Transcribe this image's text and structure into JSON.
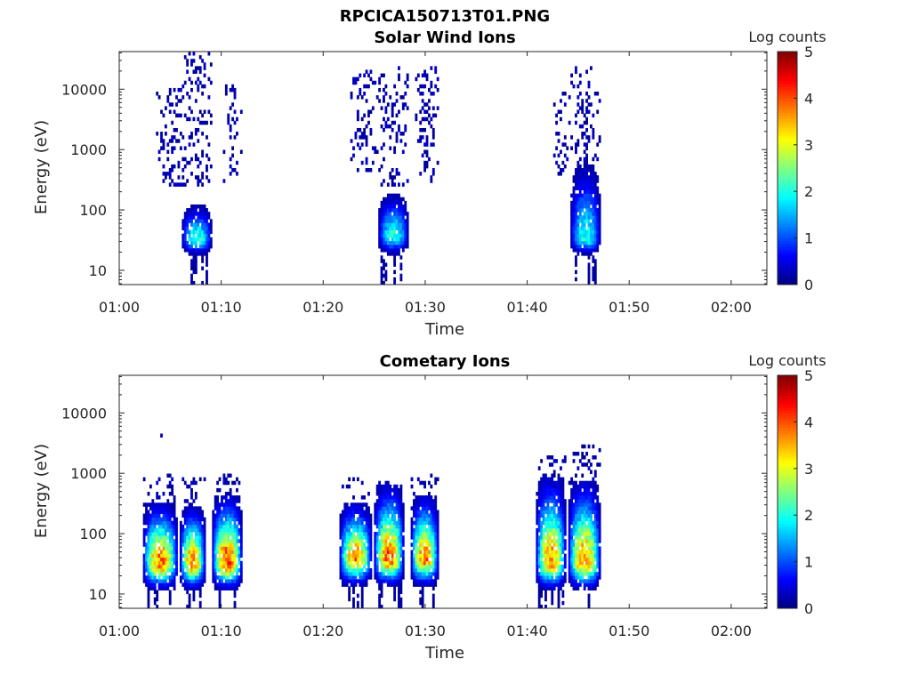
{
  "figure_title": "RPCICA150713T01.PNG",
  "chart_data": [
    {
      "type": "heatmap",
      "title": "Solar Wind Ions",
      "xlabel": "Time",
      "ylabel": "Energy (eV)",
      "x_tick_labels": [
        "01:00",
        "01:10",
        "01:20",
        "01:30",
        "01:40",
        "01:50",
        "02:00"
      ],
      "x_tick_minutes": [
        0,
        10,
        20,
        30,
        40,
        50,
        60
      ],
      "xlim_minutes": [
        0,
        63.5
      ],
      "y_tick_labels": [
        "10",
        "100",
        "1000",
        "10000"
      ],
      "y_tick_values": [
        10,
        100,
        1000,
        10000
      ],
      "ylim": [
        5.8,
        42000
      ],
      "y_scale": "log",
      "colorbar": {
        "label": "Log counts",
        "ticks": [
          0,
          1,
          2,
          3,
          4,
          5
        ],
        "range": [
          0,
          5
        ],
        "colormap": "jet"
      },
      "bursts": [
        {
          "t0": 6.2,
          "t1": 9.0,
          "core_emin": 18,
          "core_emax": 120,
          "core_peak_energy": 35,
          "core_peak_log": 2.2,
          "scatter_emin": 250,
          "scatter_emax": 38000,
          "low_energy_traces": true
        },
        {
          "t0": 3.8,
          "t1": 6.6,
          "core_emin": 0,
          "core_emax": 0,
          "core_peak_energy": 0,
          "core_peak_log": 0,
          "scatter_emin": 280,
          "scatter_emax": 9500,
          "low_energy_traces": false
        },
        {
          "t0": 10.3,
          "t1": 12.0,
          "core_emin": 0,
          "core_emax": 0,
          "core_peak_energy": 0,
          "core_peak_log": 0,
          "scatter_emin": 300,
          "scatter_emax": 12000,
          "low_energy_traces": false
        },
        {
          "t0": 25.5,
          "t1": 28.2,
          "core_emin": 18,
          "core_emax": 180,
          "core_peak_energy": 40,
          "core_peak_log": 2.1,
          "scatter_emin": 250,
          "scatter_emax": 22000,
          "low_energy_traces": true
        },
        {
          "t0": 22.8,
          "t1": 25.4,
          "core_emin": 0,
          "core_emax": 0,
          "core_peak_energy": 0,
          "core_peak_log": 0,
          "scatter_emin": 400,
          "scatter_emax": 20000,
          "low_energy_traces": false
        },
        {
          "t0": 29.0,
          "t1": 31.2,
          "core_emin": 0,
          "core_emax": 0,
          "core_peak_energy": 0,
          "core_peak_log": 0,
          "scatter_emin": 300,
          "scatter_emax": 21000,
          "low_energy_traces": false
        },
        {
          "t0": 44.3,
          "t1": 47.2,
          "core_emin": 18,
          "core_emax": 500,
          "core_peak_energy": 35,
          "core_peak_log": 2.0,
          "scatter_emin": 300,
          "scatter_emax": 24000,
          "low_energy_traces": true
        },
        {
          "t0": 42.5,
          "t1": 44.2,
          "core_emin": 0,
          "core_emax": 0,
          "core_peak_energy": 0,
          "core_peak_log": 0,
          "scatter_emin": 400,
          "scatter_emax": 9000,
          "low_energy_traces": false
        }
      ]
    },
    {
      "type": "heatmap",
      "title": "Cometary Ions",
      "xlabel": "Time",
      "ylabel": "Energy (eV)",
      "x_tick_labels": [
        "01:00",
        "01:10",
        "01:20",
        "01:30",
        "01:40",
        "01:50",
        "02:00"
      ],
      "x_tick_minutes": [
        0,
        10,
        20,
        30,
        40,
        50,
        60
      ],
      "xlim_minutes": [
        0,
        63.5
      ],
      "y_tick_labels": [
        "10",
        "100",
        "1000",
        "10000"
      ],
      "y_tick_values": [
        10,
        100,
        1000,
        10000
      ],
      "ylim": [
        5.8,
        42000
      ],
      "y_scale": "log",
      "colorbar": {
        "label": "Log counts",
        "ticks": [
          0,
          1,
          2,
          3,
          4,
          5
        ],
        "range": [
          0,
          5
        ],
        "colormap": "jet"
      },
      "bursts": [
        {
          "t0": 2.5,
          "t1": 5.6,
          "core_emin": 12,
          "core_emax": 300,
          "core_peak_energy": 32,
          "core_peak_log": 3.9,
          "scatter_emin": 300,
          "scatter_emax": 900,
          "low_energy_traces": true
        },
        {
          "t0": 6.0,
          "t1": 8.4,
          "core_emin": 12,
          "core_emax": 250,
          "core_peak_energy": 32,
          "core_peak_log": 3.8,
          "scatter_emin": 300,
          "scatter_emax": 800,
          "low_energy_traces": true
        },
        {
          "t0": 9.2,
          "t1": 11.9,
          "core_emin": 12,
          "core_emax": 400,
          "core_peak_energy": 32,
          "core_peak_log": 4.1,
          "scatter_emin": 400,
          "scatter_emax": 900,
          "low_energy_traces": true
        },
        {
          "t0": 21.8,
          "t1": 24.6,
          "core_emin": 14,
          "core_emax": 300,
          "core_peak_energy": 40,
          "core_peak_log": 3.7,
          "scatter_emin": 400,
          "scatter_emax": 800,
          "low_energy_traces": true
        },
        {
          "t0": 25.0,
          "t1": 27.9,
          "core_emin": 14,
          "core_emax": 600,
          "core_peak_energy": 40,
          "core_peak_log": 3.9,
          "scatter_emin": 500,
          "scatter_emax": 700,
          "low_energy_traces": true
        },
        {
          "t0": 28.6,
          "t1": 31.2,
          "core_emin": 14,
          "core_emax": 400,
          "core_peak_energy": 40,
          "core_peak_log": 3.8,
          "scatter_emin": 400,
          "scatter_emax": 900,
          "low_energy_traces": true
        },
        {
          "t0": 41.0,
          "t1": 43.8,
          "core_emin": 12,
          "core_emax": 800,
          "core_peak_energy": 35,
          "core_peak_log": 3.7,
          "scatter_emin": 600,
          "scatter_emax": 1900,
          "low_energy_traces": true
        },
        {
          "t0": 44.2,
          "t1": 47.2,
          "core_emin": 12,
          "core_emax": 700,
          "core_peak_energy": 35,
          "core_peak_log": 3.7,
          "scatter_emin": 600,
          "scatter_emax": 2800,
          "low_energy_traces": true
        }
      ],
      "outliers": [
        {
          "t": 4.1,
          "energy": 4200
        }
      ]
    }
  ]
}
